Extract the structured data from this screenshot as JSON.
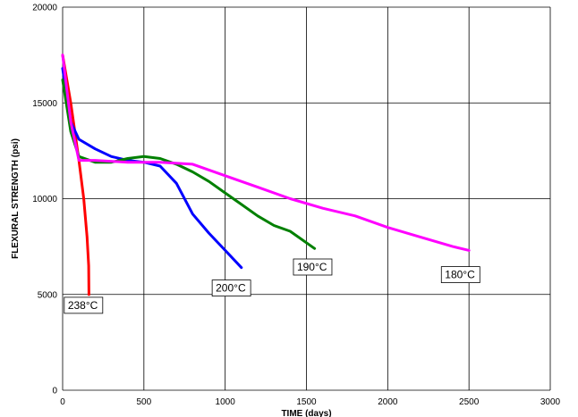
{
  "chart_data": {
    "type": "line",
    "title": "",
    "xlabel": "TIME (days)",
    "ylabel": "FLEXURAL STRENGTH (psi)",
    "xlim": [
      0,
      3000
    ],
    "ylim": [
      0,
      20000
    ],
    "xticks": [
      0,
      500,
      1000,
      1500,
      2000,
      2500,
      3000
    ],
    "yticks": [
      0,
      5000,
      10000,
      15000,
      20000
    ],
    "grid": true,
    "legend": "none",
    "series": [
      {
        "name": "238°C",
        "color": "#ff0000",
        "x": [
          0,
          50,
          100,
          130,
          150,
          160,
          162
        ],
        "y": [
          17500,
          15000,
          12000,
          10000,
          8000,
          6500,
          5000
        ],
        "label_at": [
          10,
          4200
        ]
      },
      {
        "name": "200°C",
        "color": "#0000ff",
        "x": [
          0,
          50,
          100,
          200,
          300,
          400,
          500,
          600,
          700,
          800,
          900,
          1000,
          1100
        ],
        "y": [
          16800,
          14000,
          13100,
          12600,
          12200,
          12000,
          11900,
          11700,
          10800,
          9200,
          8200,
          7300,
          6400
        ],
        "label_at": [
          920,
          5100
        ]
      },
      {
        "name": "190°C",
        "color": "#008000",
        "x": [
          0,
          50,
          100,
          200,
          300,
          400,
          500,
          600,
          700,
          800,
          900,
          1000,
          1100,
          1200,
          1300,
          1400,
          1550
        ],
        "y": [
          16200,
          13500,
          12200,
          11900,
          11900,
          12100,
          12200,
          12100,
          11800,
          11400,
          10900,
          10300,
          9700,
          9100,
          8600,
          8300,
          7400
        ],
        "label_at": [
          1420,
          6200
        ]
      },
      {
        "name": "180°C",
        "color": "#ff00ff",
        "x": [
          0,
          50,
          100,
          200,
          400,
          600,
          800,
          1000,
          1200,
          1400,
          1600,
          1800,
          2000,
          2200,
          2400,
          2500
        ],
        "y": [
          17500,
          14000,
          12000,
          12000,
          11900,
          11900,
          11800,
          11200,
          10600,
          10000,
          9500,
          9100,
          8500,
          8000,
          7500,
          7300
        ],
        "label_at": [
          2330,
          5800
        ]
      }
    ]
  }
}
